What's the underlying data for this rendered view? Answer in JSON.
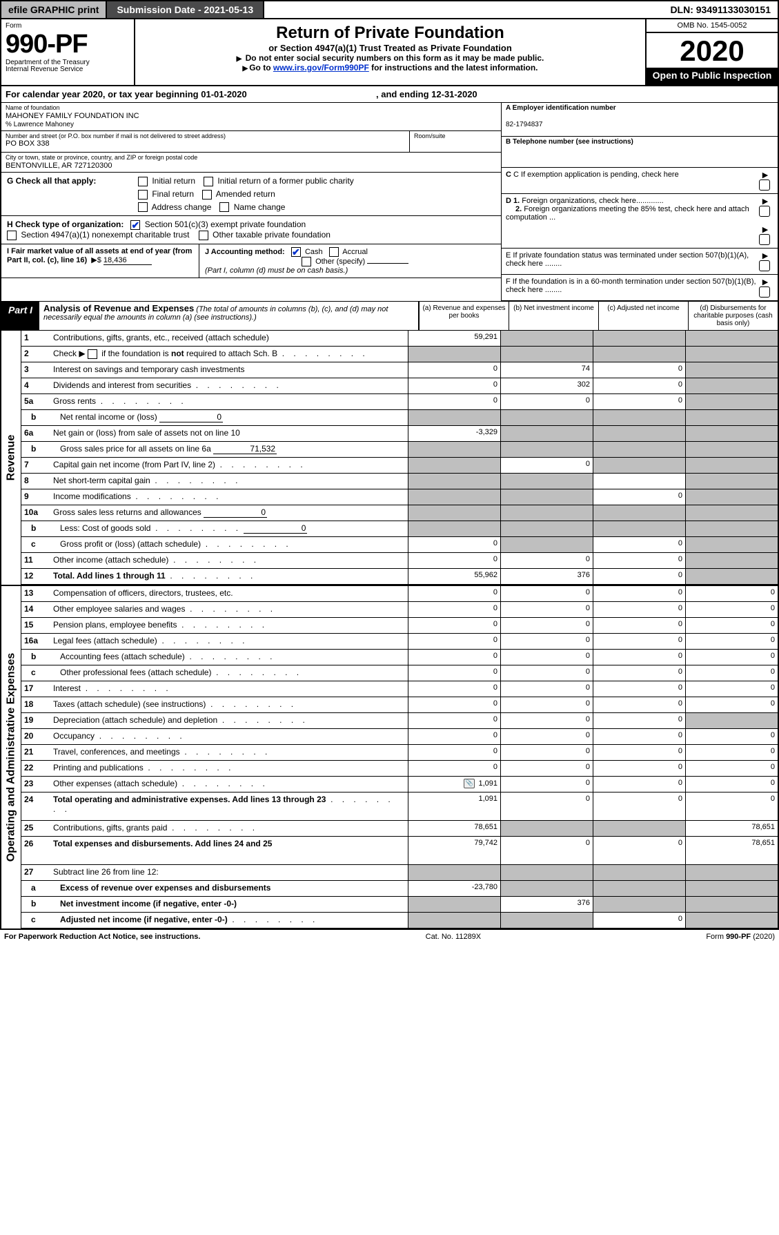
{
  "top": {
    "efile": "efile GRAPHIC print",
    "submission_label": "Submission Date - 2021-05-13",
    "dln": "DLN: 93491133030151"
  },
  "header": {
    "form_word": "Form",
    "form_number": "990-PF",
    "dept1": "Department of the Treasury",
    "dept2": "Internal Revenue Service",
    "title": "Return of Private Foundation",
    "subtitle1": "or Section 4947(a)(1) Trust Treated as Private Foundation",
    "sub2_a": "Do not enter social security numbers on this form as it may be made public.",
    "sub2_b_pre": "Go to ",
    "sub2_b_link": "www.irs.gov/Form990PF",
    "sub2_b_post": " for instructions and the latest information.",
    "omb": "OMB No. 1545-0052",
    "year": "2020",
    "open": "Open to Public Inspection"
  },
  "cal_year": {
    "pre": "For calendar year 2020, or tax year beginning ",
    "begin": "01-01-2020",
    "mid": " , and ending ",
    "end": "12-31-2020"
  },
  "name_block": {
    "label": "Name of foundation",
    "name": "MAHONEY FAMILY FOUNDATION INC",
    "co": "% Lawrence Mahoney",
    "street_label": "Number and street (or P.O. box number if mail is not delivered to street address)",
    "street": "PO BOX 338",
    "room_label": "Room/suite",
    "city_label": "City or town, state or province, country, and ZIP or foreign postal code",
    "city": "BENTONVILLE, AR  727120300"
  },
  "right_info": {
    "a_label": "A Employer identification number",
    "a_val": "82-1794837",
    "b_label": "B Telephone number (see instructions)",
    "c_label": "C If exemption application is pending, check here",
    "d1": "D 1. Foreign organizations, check here.............",
    "d2": "2. Foreign organizations meeting the 85% test, check here and attach computation ...",
    "e": "E   If private foundation status was terminated under section 507(b)(1)(A), check here ........",
    "f": "F   If the foundation is in a 60-month termination under section 507(b)(1)(B), check here ........"
  },
  "g": {
    "label": "G Check all that apply:",
    "opts": [
      "Initial return",
      "Initial return of a former public charity",
      "Final return",
      "Amended return",
      "Address change",
      "Name change"
    ]
  },
  "h": {
    "label": "H Check type of organization:",
    "o1": "Section 501(c)(3) exempt private foundation",
    "o2": "Section 4947(a)(1) nonexempt charitable trust",
    "o3": "Other taxable private foundation"
  },
  "i": {
    "label": "I Fair market value of all assets at end of year (from Part II, col. (c), line 16)",
    "arrow": "▶$",
    "value": "18,436"
  },
  "j": {
    "label": "J Accounting method:",
    "cash": "Cash",
    "accrual": "Accrual",
    "other": "Other (specify)",
    "note": "(Part I, column (d) must be on cash basis.)"
  },
  "part1": {
    "tag": "Part I",
    "title": "Analysis of Revenue and Expenses",
    "note": "(The total of amounts in columns (b), (c), and (d) may not necessarily equal the amounts in column (a) (see instructions).)",
    "col_a": "(a)   Revenue and expenses per books",
    "col_b": "(b)   Net investment income",
    "col_c": "(c)   Adjusted net income",
    "col_d": "(d)   Disbursements for charitable purposes (cash basis only)"
  },
  "side": {
    "rev": "Revenue",
    "exp": "Operating and Administrative Expenses"
  },
  "rows": {
    "1": {
      "d": "Contributions, gifts, grants, etc., received (attach schedule)",
      "a": "59,291",
      "b": "",
      "c": "",
      "dd": "",
      "shade": [
        "b",
        "c",
        "dd"
      ]
    },
    "2": {
      "d": "Check ▶ ☐ if the foundation is not required to attach Sch. B",
      "a": "",
      "shade": [
        "a",
        "b",
        "c",
        "dd"
      ],
      "dots": true
    },
    "3": {
      "d": "Interest on savings and temporary cash investments",
      "a": "0",
      "b": "74",
      "c": "0",
      "dd": "",
      "shade": [
        "dd"
      ]
    },
    "4": {
      "d": "Dividends and interest from securities",
      "a": "0",
      "b": "302",
      "c": "0",
      "dd": "",
      "shade": [
        "dd"
      ],
      "dots": true
    },
    "5a": {
      "d": "Gross rents",
      "a": "0",
      "b": "0",
      "c": "0",
      "dd": "",
      "shade": [
        "dd"
      ],
      "dots": true
    },
    "5b": {
      "d": "Net rental income or (loss)",
      "inline": "0",
      "shade": [
        "a",
        "b",
        "c",
        "dd"
      ]
    },
    "6a": {
      "d": "Net gain or (loss) from sale of assets not on line 10",
      "a": "-3,329",
      "shade": [
        "b",
        "c",
        "dd"
      ]
    },
    "6b": {
      "d": "Gross sales price for all assets on line 6a",
      "inline": "71,532",
      "shade": [
        "a",
        "b",
        "c",
        "dd"
      ]
    },
    "7": {
      "d": "Capital gain net income (from Part IV, line 2)",
      "a": "",
      "b": "0",
      "c": "",
      "dd": "",
      "shade": [
        "a",
        "c",
        "dd"
      ],
      "dots": true
    },
    "8": {
      "d": "Net short-term capital gain",
      "a": "",
      "b": "",
      "c": "",
      "dd": "",
      "shade": [
        "a",
        "b",
        "dd"
      ],
      "dots": true
    },
    "9": {
      "d": "Income modifications",
      "a": "",
      "b": "",
      "c": "0",
      "dd": "",
      "shade": [
        "a",
        "b",
        "dd"
      ],
      "dots": true
    },
    "10a": {
      "d": "Gross sales less returns and allowances",
      "inline": "0",
      "shade": [
        "a",
        "b",
        "c",
        "dd"
      ]
    },
    "10b": {
      "d": "Less: Cost of goods sold",
      "inline": "0",
      "shade": [
        "a",
        "b",
        "c",
        "dd"
      ],
      "dots": true
    },
    "10c": {
      "d": "Gross profit or (loss) (attach schedule)",
      "a": "0",
      "b": "",
      "c": "0",
      "dd": "",
      "shade": [
        "b",
        "dd"
      ],
      "dots": true
    },
    "11": {
      "d": "Other income (attach schedule)",
      "a": "0",
      "b": "0",
      "c": "0",
      "dd": "",
      "shade": [
        "dd"
      ],
      "dots": true
    },
    "12": {
      "d": "Total. Add lines 1 through 11",
      "a": "55,962",
      "b": "376",
      "c": "0",
      "dd": "",
      "shade": [
        "dd"
      ],
      "bold": true,
      "dots": true
    },
    "13": {
      "d": "Compensation of officers, directors, trustees, etc.",
      "a": "0",
      "b": "0",
      "c": "0",
      "dd": "0"
    },
    "14": {
      "d": "Other employee salaries and wages",
      "a": "0",
      "b": "0",
      "c": "0",
      "dd": "0",
      "dots": true
    },
    "15": {
      "d": "Pension plans, employee benefits",
      "a": "0",
      "b": "0",
      "c": "0",
      "dd": "0",
      "dots": true
    },
    "16a": {
      "d": "Legal fees (attach schedule)",
      "a": "0",
      "b": "0",
      "c": "0",
      "dd": "0",
      "dots": true
    },
    "16b": {
      "d": "Accounting fees (attach schedule)",
      "a": "0",
      "b": "0",
      "c": "0",
      "dd": "0",
      "dots": true
    },
    "16c": {
      "d": "Other professional fees (attach schedule)",
      "a": "0",
      "b": "0",
      "c": "0",
      "dd": "0",
      "dots": true
    },
    "17": {
      "d": "Interest",
      "a": "0",
      "b": "0",
      "c": "0",
      "dd": "0",
      "dots": true
    },
    "18": {
      "d": "Taxes (attach schedule) (see instructions)",
      "a": "0",
      "b": "0",
      "c": "0",
      "dd": "0",
      "dots": true
    },
    "19": {
      "d": "Depreciation (attach schedule) and depletion",
      "a": "0",
      "b": "0",
      "c": "0",
      "dd": "",
      "shade": [
        "dd"
      ],
      "dots": true
    },
    "20": {
      "d": "Occupancy",
      "a": "0",
      "b": "0",
      "c": "0",
      "dd": "0",
      "dots": true
    },
    "21": {
      "d": "Travel, conferences, and meetings",
      "a": "0",
      "b": "0",
      "c": "0",
      "dd": "0",
      "dots": true
    },
    "22": {
      "d": "Printing and publications",
      "a": "0",
      "b": "0",
      "c": "0",
      "dd": "0",
      "dots": true
    },
    "23": {
      "d": "Other expenses (attach schedule)",
      "a": "1,091",
      "b": "0",
      "c": "0",
      "dd": "0",
      "icon": true,
      "dots": true
    },
    "24": {
      "d": "Total operating and administrative expenses. Add lines 13 through 23",
      "a": "1,091",
      "b": "0",
      "c": "0",
      "dd": "0",
      "bold": true,
      "twoline": true,
      "dots": true
    },
    "25": {
      "d": "Contributions, gifts, grants paid",
      "a": "78,651",
      "b": "",
      "c": "",
      "dd": "78,651",
      "shade": [
        "b",
        "c"
      ],
      "dots": true
    },
    "26": {
      "d": "Total expenses and disbursements. Add lines 24 and 25",
      "a": "79,742",
      "b": "0",
      "c": "0",
      "dd": "78,651",
      "bold": true,
      "twoline": true
    },
    "27": {
      "d": "Subtract line 26 from line 12:",
      "shade": [
        "a",
        "b",
        "c",
        "dd"
      ]
    },
    "27a": {
      "d": "Excess of revenue over expenses and disbursements",
      "a": "-23,780",
      "b": "",
      "c": "",
      "dd": "",
      "shade": [
        "b",
        "c",
        "dd"
      ],
      "bold": true
    },
    "27b": {
      "d": "Net investment income (if negative, enter -0-)",
      "a": "",
      "b": "376",
      "c": "",
      "dd": "",
      "shade": [
        "a",
        "c",
        "dd"
      ],
      "bold": true
    },
    "27c": {
      "d": "Adjusted net income (if negative, enter -0-)",
      "a": "",
      "b": "",
      "c": "0",
      "dd": "",
      "shade": [
        "a",
        "b",
        "dd"
      ],
      "bold": true,
      "dots": true
    }
  },
  "footer": {
    "left": "For Paperwork Reduction Act Notice, see instructions.",
    "center": "Cat. No. 11289X",
    "right_pre": "Form ",
    "right_bold": "990-PF",
    "right_post": " (2020)"
  }
}
